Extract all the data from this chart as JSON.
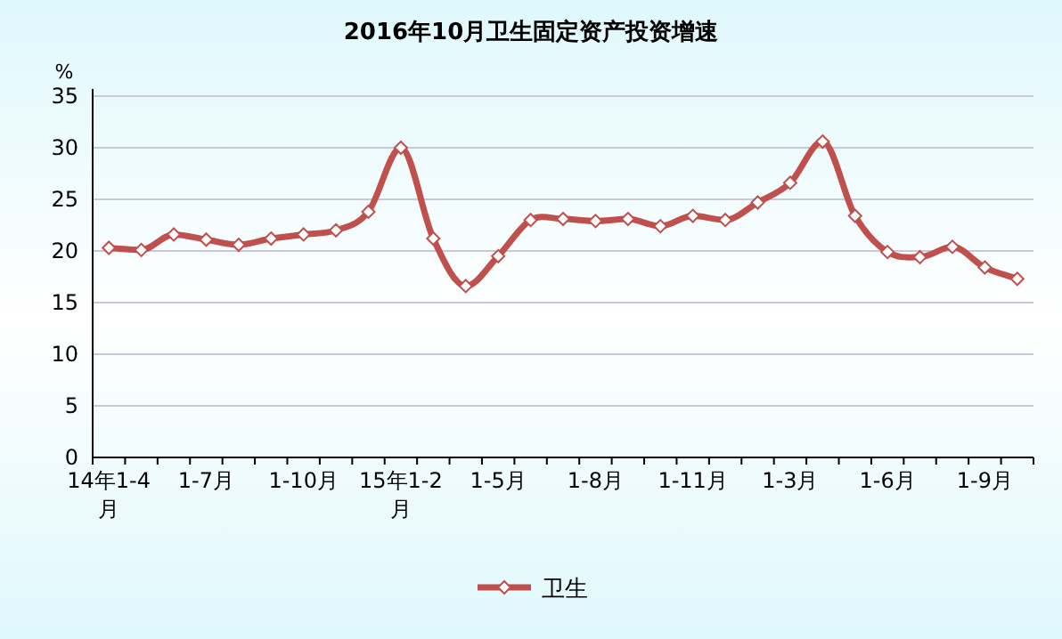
{
  "chart_data": {
    "type": "line",
    "title": "2016年10月卫生固定资产投资增速",
    "ylabel": "%",
    "categories": [
      "14年1-4月",
      null,
      null,
      "1-7月",
      null,
      null,
      "1-10月",
      null,
      null,
      "15年1-2月",
      null,
      null,
      "1-5月",
      null,
      null,
      "1-8月",
      null,
      null,
      "1-11月",
      null,
      null,
      "1-3月",
      null,
      null,
      "1-6月",
      null,
      null,
      "1-9月",
      null
    ],
    "series": [
      {
        "name": "卫生",
        "color": "#c0504d",
        "values": [
          20.3,
          20.1,
          21.6,
          21.1,
          20.6,
          21.2,
          21.6,
          22.0,
          23.8,
          30.0,
          21.2,
          16.6,
          19.5,
          23.0,
          23.1,
          22.9,
          23.1,
          22.4,
          23.4,
          23.0,
          24.7,
          26.6,
          30.6,
          23.4,
          19.9,
          19.4,
          20.4,
          18.4,
          17.3
        ]
      }
    ],
    "ylim": [
      0,
      35
    ],
    "yticks": [
      0,
      5,
      10,
      15,
      20,
      25,
      30,
      35
    ],
    "grid": "y",
    "legend": "bottom",
    "marker": "diamond",
    "line_style": "solid"
  }
}
